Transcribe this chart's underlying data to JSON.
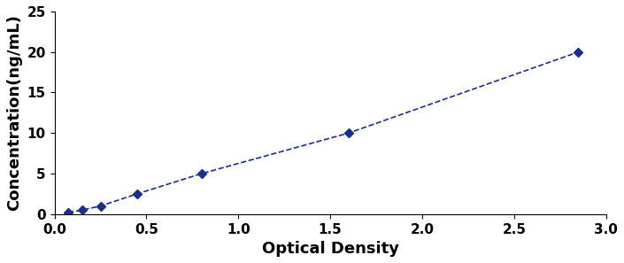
{
  "x_data": [
    0.075,
    0.15,
    0.25,
    0.45,
    0.8,
    1.6,
    2.85
  ],
  "y_data": [
    0.2,
    0.5,
    1.0,
    2.5,
    5.0,
    10.0,
    20.0
  ],
  "line_color": "#1a2e8c",
  "marker": "D",
  "marker_size": 5,
  "marker_color": "#1a2e8c",
  "line_style": "--",
  "line_width": 1.2,
  "xlabel": "Optical Density",
  "ylabel": "Concentration(ng/mL)",
  "xlim": [
    0,
    3.0
  ],
  "ylim": [
    0,
    25
  ],
  "xticks": [
    0,
    0.5,
    1,
    1.5,
    2,
    2.5,
    3
  ],
  "yticks": [
    0,
    5,
    10,
    15,
    20,
    25
  ],
  "background_color": "#ffffff",
  "tick_fontsize": 11,
  "label_fontsize": 13,
  "fig_width": 7.05,
  "fig_height": 2.97
}
